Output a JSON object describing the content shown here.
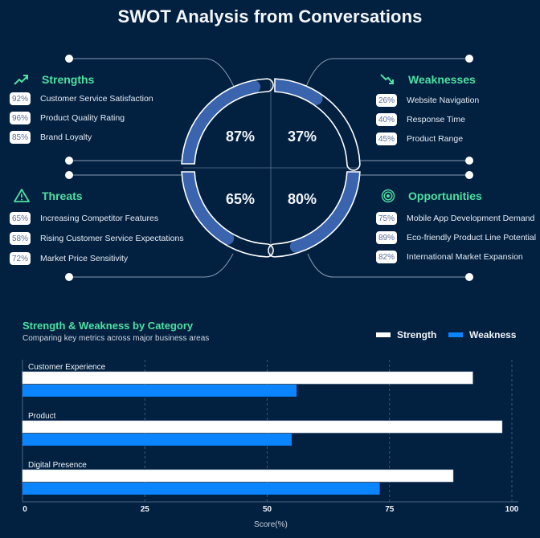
{
  "title": "SWOT Analysis from Conversations",
  "colors": {
    "background": "#022140",
    "accent_green": "#4fe0a2",
    "ring_fill": "#3a64ad",
    "strength_bar": "#ffffff",
    "weakness_bar": "#0a84ff"
  },
  "swot": {
    "strengths": {
      "label": "Strengths",
      "icon": "trending-up-icon",
      "score": "87%",
      "score_value": 87,
      "items": [
        {
          "pct": "92%",
          "label": "Customer Service Satisfaction"
        },
        {
          "pct": "96%",
          "label": "Product Quality Rating"
        },
        {
          "pct": "85%",
          "label": "Brand Loyalty"
        }
      ]
    },
    "weaknesses": {
      "label": "Weaknesses",
      "icon": "trending-down-icon",
      "score": "37%",
      "score_value": 37,
      "items": [
        {
          "pct": "26%",
          "label": "Website Navigation"
        },
        {
          "pct": "40%",
          "label": "Response Time"
        },
        {
          "pct": "45%",
          "label": "Product Range"
        }
      ]
    },
    "threats": {
      "label": "Threats",
      "icon": "warning-triangle-icon",
      "score": "65%",
      "score_value": 65,
      "items": [
        {
          "pct": "65%",
          "label": "Increasing Competitor Features"
        },
        {
          "pct": "58%",
          "label": "Rising Customer Service Expectations"
        },
        {
          "pct": "72%",
          "label": "Market Price Sensitivity"
        }
      ]
    },
    "opportunities": {
      "label": "Opportunities",
      "icon": "target-icon",
      "score": "80%",
      "score_value": 80,
      "items": [
        {
          "pct": "75%",
          "label": "Mobile App Development Demand"
        },
        {
          "pct": "89%",
          "label": "Eco-friendly Product Line Potential"
        },
        {
          "pct": "82%",
          "label": "International Market Expansion"
        }
      ]
    }
  },
  "chart_data": {
    "type": "bar",
    "orientation": "horizontal",
    "title": "Strength & Weakness by Category",
    "subtitle": "Comparing key metrics across major business areas",
    "categories": [
      "Customer Experience",
      "Product",
      "Digital Presence"
    ],
    "series": [
      {
        "name": "Strength",
        "color": "#ffffff",
        "values": [
          92,
          98,
          88
        ]
      },
      {
        "name": "Weakness",
        "color": "#0a84ff",
        "values": [
          56,
          55,
          73
        ]
      }
    ],
    "xlabel": "Score(%)",
    "ylabel": "",
    "xlim": [
      0,
      100
    ],
    "xticks": [
      "0",
      "25",
      "50",
      "75",
      "100"
    ],
    "grid": "vertical-dashed",
    "legend": "top-right"
  }
}
